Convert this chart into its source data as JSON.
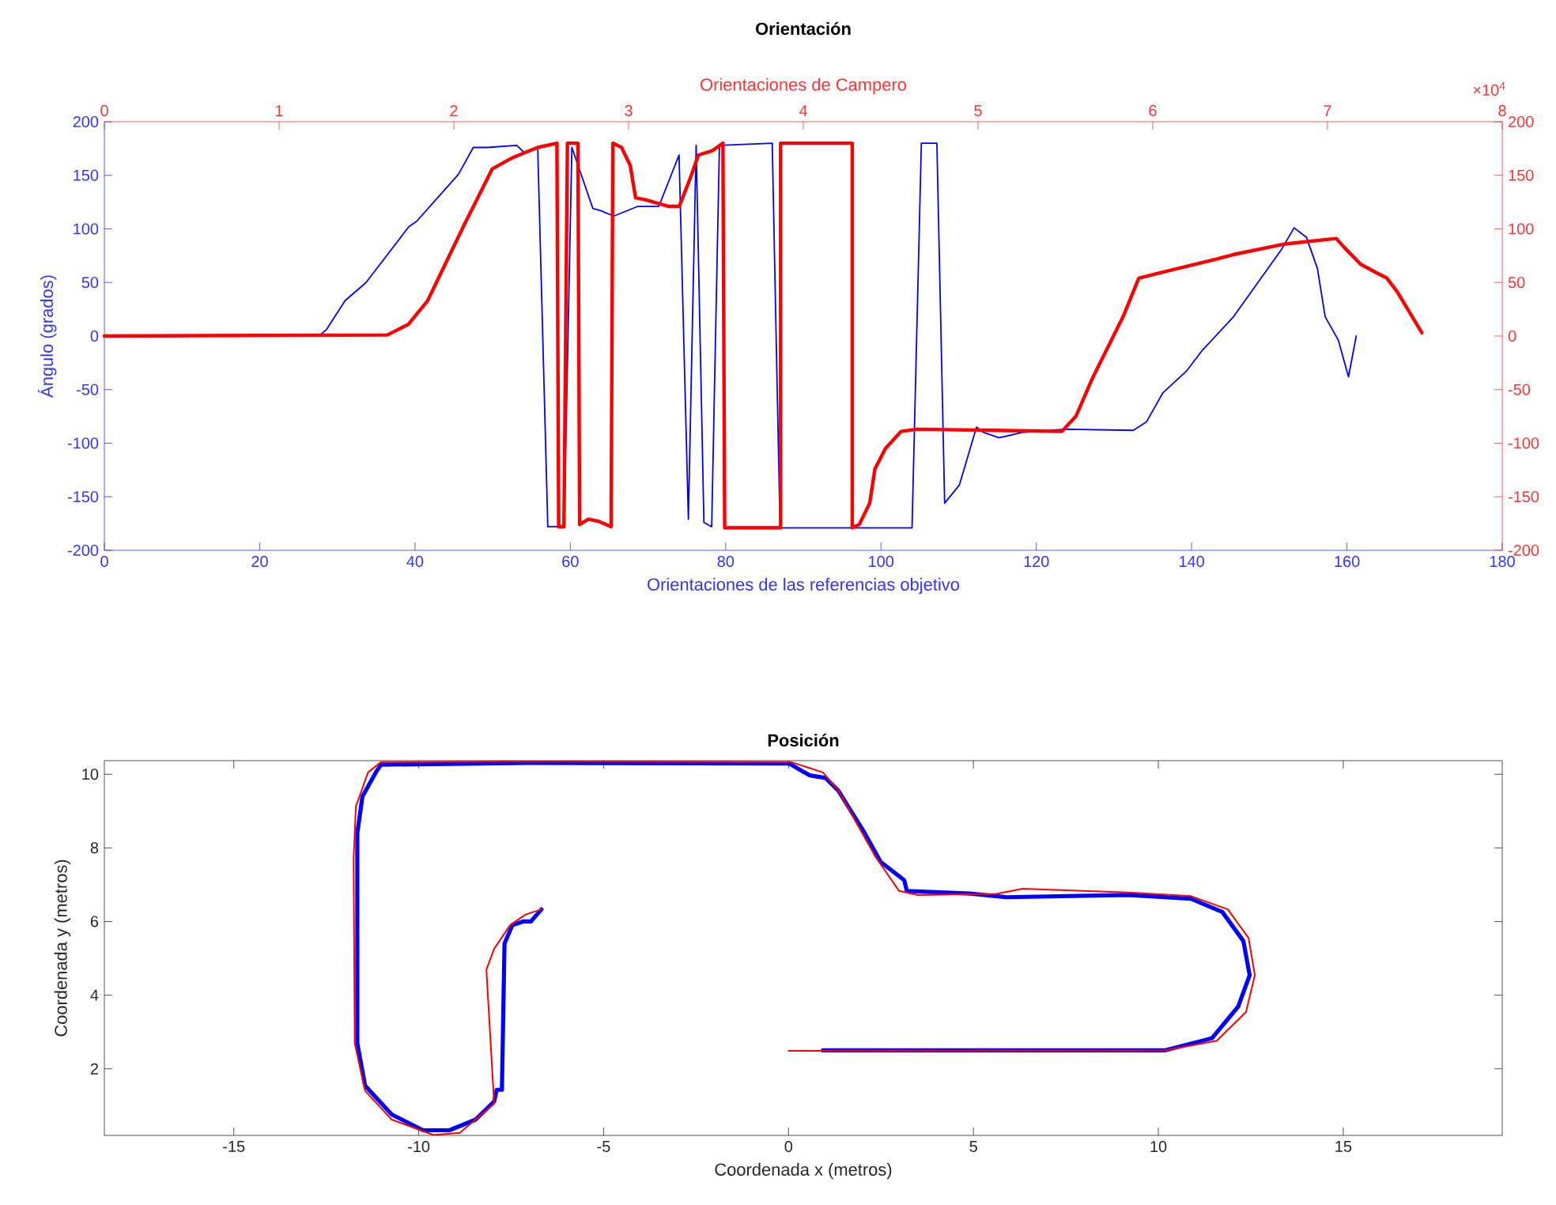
{
  "chart_data": [
    {
      "type": "line",
      "title": "Orientación",
      "xlabel": "Orientaciones de las referencias objetivo",
      "ylabel": "Ángulo (grados)",
      "x2label": "Orientaciones de Campero",
      "xlim": [
        0,
        180
      ],
      "xticks": [
        0,
        20,
        40,
        60,
        80,
        100,
        120,
        140,
        160,
        180
      ],
      "ylim": [
        -200,
        200
      ],
      "yticks": [
        -200,
        -150,
        -100,
        -50,
        0,
        50,
        100,
        150,
        200
      ],
      "x2lim": [
        0,
        8
      ],
      "x2ticks": [
        0,
        1,
        2,
        3,
        4,
        5,
        6,
        7,
        8
      ],
      "y2lim": [
        -200,
        200
      ],
      "y2ticks": [
        -200,
        -150,
        -100,
        -50,
        0,
        50,
        100,
        150,
        200
      ],
      "annotations": [
        "×10$^{4}$"
      ],
      "series": [
        {
          "color": "#0000ff",
          "x": [
            0,
            27.6,
            28.6,
            31,
            33.7,
            39.2,
            40.2,
            45.6,
            47.5,
            49.3,
            53.1,
            54.1,
            55.8,
            57.1,
            59.2,
            60.2,
            62.9,
            63.9,
            65.6,
            68.7,
            71.4,
            74.0,
            75.2,
            76.2,
            77.2,
            78.2,
            79.2,
            86,
            87,
            104,
            105.2,
            107.2,
            108.2,
            110.1,
            112.3,
            113.2,
            115.2,
            118.2,
            123.7,
            132.5,
            134.2,
            136.3,
            139.3,
            141.3,
            145.4,
            151.5,
            153.2,
            154.8,
            156.2,
            157.2,
            158.9,
            160.2,
            161.2
          ],
          "values": [
            0,
            0,
            6,
            33,
            50,
            102,
            107,
            151,
            176,
            176,
            178,
            171,
            176,
            -178,
            -178,
            176,
            119,
            117,
            112,
            121,
            121,
            169,
            -171,
            178,
            -174,
            -178,
            178,
            180,
            -179,
            -179,
            180,
            180,
            -156,
            -139,
            -85,
            -90,
            -95,
            -90,
            -87,
            -88,
            -80,
            -53,
            -33,
            -14,
            18,
            80,
            101,
            92,
            63,
            18,
            -4,
            -38,
            0
          ]
        },
        {
          "color": "#ff0000",
          "axis": "x2",
          "x": [
            0,
            1.62,
            1.74,
            1.85,
            2.06,
            2.22,
            2.33,
            2.48,
            2.59,
            2.6,
            2.63,
            2.65,
            2.71,
            2.72,
            2.77,
            2.83,
            2.9,
            2.91,
            2.96,
            3.01,
            3.04,
            3.1,
            3.23,
            3.29,
            3.35,
            3.4,
            3.48,
            3.54,
            3.55,
            3.87,
            3.87,
            4.28,
            4.28,
            4.32,
            4.38,
            4.41,
            4.47,
            4.56,
            4.65,
            5.48,
            5.56,
            5.65,
            5.83,
            5.92,
            6.04,
            6.37,
            6.46,
            6.76,
            7.05,
            7.1,
            7.19,
            7.28,
            7.34,
            7.4,
            7.54
          ],
          "values": [
            0,
            1,
            11,
            33,
            104,
            156,
            166,
            176,
            180,
            -178,
            -178,
            180,
            180,
            -176,
            -171,
            -173,
            -178,
            180,
            176,
            159,
            129,
            127,
            121,
            121,
            146,
            169,
            173,
            180,
            -179,
            -179,
            180,
            180,
            -179,
            -176,
            -156,
            -124,
            -105,
            -89,
            -87,
            -89,
            -75,
            -41,
            18,
            54,
            59,
            72,
            76,
            86,
            91,
            82,
            67,
            59,
            54,
            41,
            3
          ]
        }
      ]
    },
    {
      "type": "line",
      "title": "Posición",
      "xlabel": "Coordenada x (metros)",
      "ylabel": "Coordenada y (metros)",
      "xlim": [
        -18.5,
        19.3
      ],
      "xticks": [
        -15,
        -10,
        -5,
        0,
        5,
        10,
        15
      ],
      "ylim": [
        0.19,
        10.37
      ],
      "yticks": [
        2,
        4,
        6,
        8,
        10
      ],
      "series": [
        {
          "color": "#0000ff",
          "x": [
            0.93,
            10.17,
            11.45,
            12.16,
            12.47,
            12.3,
            11.73,
            10.88,
            9.17,
            5.9,
            4.91,
            3.2,
            3.13,
            2.49,
            2.06,
            1.35,
            1.0,
            0.57,
            0.07,
            0,
            -7.04,
            -11.02,
            -11.16,
            -11.52,
            -11.66,
            -11.66,
            -11.45,
            -10.73,
            -9.88,
            -9.17,
            -8.46,
            -7.96,
            -7.89,
            -7.75,
            -7.68,
            -7.47,
            -7.18,
            -6.97,
            -6.68
          ],
          "values": [
            2.5,
            2.5,
            2.83,
            3.69,
            4.54,
            5.47,
            6.26,
            6.62,
            6.72,
            6.66,
            6.76,
            6.83,
            7.12,
            7.62,
            8.4,
            9.55,
            9.9,
            9.97,
            10.26,
            10.29,
            10.31,
            10.26,
            10.05,
            9.4,
            8.4,
            2.69,
            1.54,
            0.76,
            0.33,
            0.33,
            0.62,
            1.11,
            1.43,
            1.43,
            5.4,
            5.9,
            6.0,
            6.0,
            6.33
          ]
        },
        {
          "color": "#ff0000",
          "x": [
            0,
            10.17,
            11.58,
            12.37,
            12.61,
            12.44,
            11.88,
            10.88,
            9.17,
            6.33,
            5.62,
            3.49,
            2.99,
            2.35,
            1.35,
            0.93,
            0.07,
            -7.04,
            -11.02,
            -11.37,
            -11.7,
            -11.76,
            -11.73,
            -11.45,
            -10.73,
            -9.6,
            -8.89,
            -7.96,
            -8.17,
            -7.96,
            -7.53,
            -7.11,
            -6.68
          ],
          "values": [
            2.49,
            2.5,
            2.76,
            3.54,
            4.54,
            5.55,
            6.33,
            6.69,
            6.79,
            6.89,
            6.75,
            6.72,
            6.83,
            7.76,
            9.55,
            10.05,
            10.33,
            10.35,
            10.33,
            10.05,
            9.12,
            7.69,
            2.69,
            1.4,
            0.62,
            0.2,
            0.26,
            1.05,
            4.69,
            5.26,
            5.9,
            6.19,
            6.33
          ]
        }
      ]
    }
  ]
}
